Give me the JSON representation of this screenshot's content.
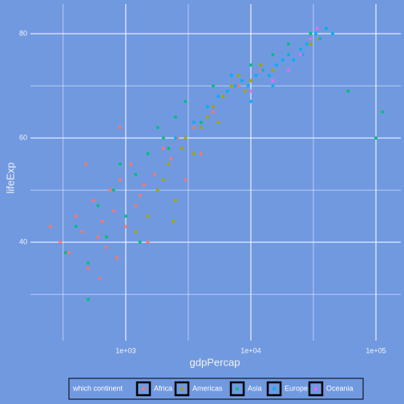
{
  "chart_data": {
    "type": "scatter",
    "x_label": "gdpPercap",
    "y_label": "lifeExp",
    "x_log": true,
    "grid": true,
    "xlim": [
      173,
      158000
    ],
    "ylim": [
      21.1,
      85.7
    ],
    "xticks": [
      {
        "value": 1000,
        "label": "1e+03"
      },
      {
        "value": 10000,
        "label": "1e+04"
      },
      {
        "value": 100000,
        "label": "1e+05"
      }
    ],
    "x_minor_ticks": [
      316.2,
      3162.3,
      31622.8
    ],
    "yticks": [
      40,
      60,
      80
    ],
    "y_minor_ticks": [
      30,
      50,
      70
    ],
    "legend_title": "which continent",
    "legend_position": "bottom",
    "series": [
      {
        "name": "Africa",
        "color": "#F8766D",
        "x": [
          300,
          350,
          400,
          450,
          500,
          550,
          600,
          650,
          700,
          750,
          800,
          850,
          900,
          1000,
          1100,
          1200,
          1300,
          1400,
          1500,
          1700,
          2000,
          2300,
          2600,
          3000,
          3500,
          4000,
          5000,
          6000,
          8000,
          12000,
          250,
          480,
          620,
          900,
          1500
        ],
        "values": [
          40,
          38,
          45,
          42,
          35,
          48,
          41,
          44,
          39,
          50,
          46,
          37,
          52,
          43,
          55,
          47,
          49,
          51,
          45,
          53,
          58,
          56,
          60,
          52,
          62,
          57,
          65,
          68,
          70,
          73,
          43,
          55,
          33,
          62,
          40
        ]
      },
      {
        "name": "Americas",
        "color": "#A3A500",
        "x": [
          1500,
          1800,
          2000,
          2200,
          2500,
          2800,
          3000,
          3500,
          4000,
          4500,
          5000,
          5500,
          6000,
          7000,
          8000,
          9000,
          10000,
          12000,
          15000,
          20000,
          25000,
          30000,
          35000,
          1200,
          2400
        ],
        "values": [
          45,
          50,
          52,
          55,
          48,
          58,
          60,
          57,
          62,
          64,
          66,
          63,
          68,
          70,
          72,
          69,
          71,
          74,
          73,
          76,
          77,
          78,
          79,
          42,
          44
        ]
      },
      {
        "name": "Asia",
        "color": "#00BF7D",
        "x": [
          330,
          400,
          500,
          600,
          700,
          800,
          1000,
          1200,
          1500,
          1800,
          2000,
          2500,
          3000,
          4000,
          5000,
          7000,
          10000,
          15000,
          20000,
          30000,
          40000,
          60000,
          100000,
          113000,
          500,
          900,
          1300,
          2200
        ],
        "values": [
          38,
          43,
          36,
          47,
          41,
          50,
          45,
          53,
          57,
          62,
          60,
          64,
          67,
          63,
          70,
          72,
          74,
          76,
          78,
          80,
          81,
          69,
          60,
          65,
          29,
          55,
          40,
          58
        ]
      },
      {
        "name": "Europe",
        "color": "#00B0F6",
        "x": [
          2500,
          3500,
          4500,
          5500,
          6500,
          7500,
          8500,
          9500,
          11000,
          12500,
          14000,
          16000,
          18000,
          20000,
          22000,
          25000,
          28000,
          30000,
          33000,
          36000,
          40000,
          45000,
          10000,
          15000,
          26000,
          7000
        ],
        "values": [
          60,
          63,
          66,
          68,
          69,
          70,
          71,
          70,
          72,
          73,
          72,
          74,
          75,
          76,
          75,
          77,
          78,
          79,
          80,
          79,
          81,
          80,
          67,
          70,
          76,
          72
        ]
      },
      {
        "name": "Oceania",
        "color": "#E76BF3",
        "x": [
          10000,
          15000,
          20000,
          25000,
          30000,
          34000
        ],
        "values": [
          69,
          71,
          73,
          76,
          79,
          81
        ]
      }
    ]
  }
}
